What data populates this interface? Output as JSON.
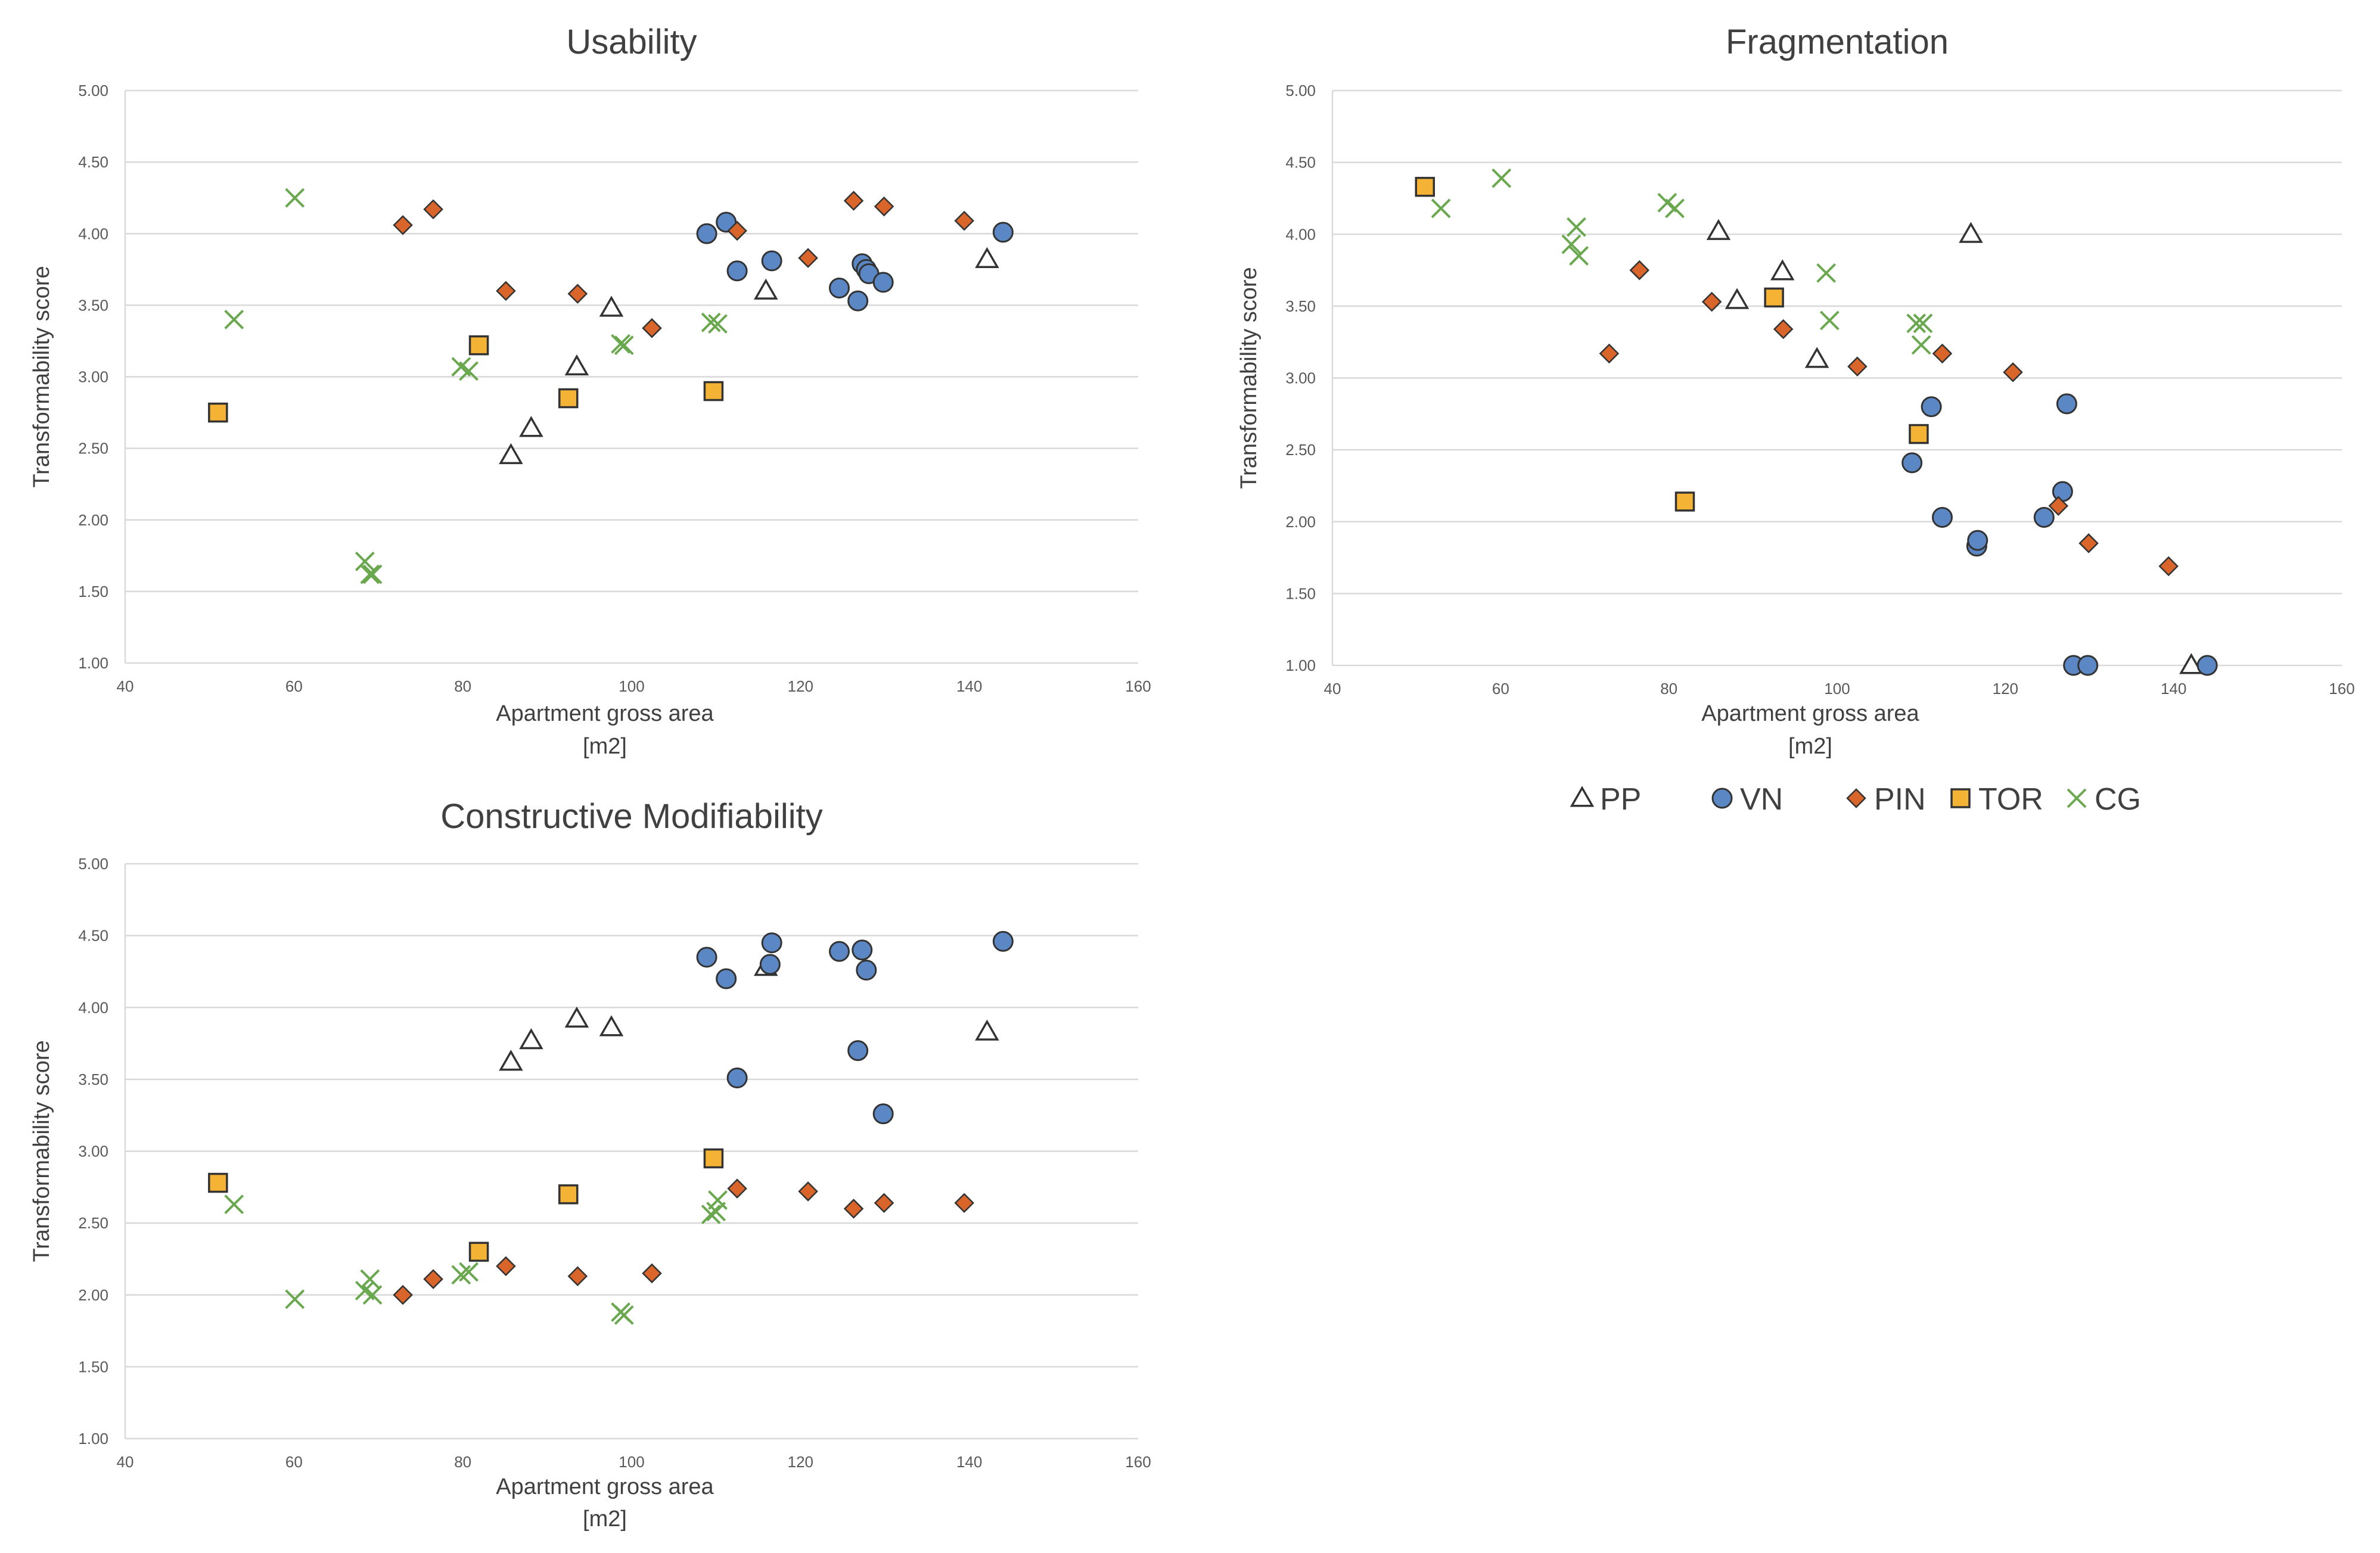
{
  "legend": {
    "placement": "below-right-chart",
    "entries": [
      {
        "key": "PP",
        "label": "PP",
        "marker": "triangle-open"
      },
      {
        "key": "VN",
        "label": "VN",
        "marker": "circle"
      },
      {
        "key": "PIN",
        "label": "PIN",
        "marker": "diamond"
      },
      {
        "key": "TOR",
        "label": "TOR",
        "marker": "square"
      },
      {
        "key": "CG",
        "label": "CG",
        "marker": "x"
      }
    ]
  },
  "colors": {
    "PP": "#ffffff",
    "VN": "#5b87c5",
    "PIN": "#d9652a",
    "TOR": "#f5b335",
    "CG": "#6aa84f",
    "stroke": "#333333",
    "grid": "#d9d9d9",
    "text": "#404040"
  },
  "chart_data": [
    {
      "id": "usability",
      "type": "scatter",
      "title": "Usability",
      "xlabel": "Apartment gross area",
      "xlabel_unit": "[m2]",
      "ylabel": "Transformability score",
      "xlim": [
        40,
        160
      ],
      "ylim": [
        1.0,
        5.0
      ],
      "xticks": [
        "40",
        "60",
        "80",
        "100",
        "120",
        "140",
        "160"
      ],
      "yticks": [
        "1.00",
        "1.50",
        "2.00",
        "2.50",
        "3.00",
        "3.50",
        "4.00",
        "4.50",
        "5.00"
      ],
      "grid": true,
      "series": [
        {
          "name": "PP",
          "points": [
            [
              85.7,
              2.45
            ],
            [
              88.1,
              2.64
            ],
            [
              93.5,
              3.07
            ],
            [
              97.6,
              3.48
            ],
            [
              115.9,
              3.6
            ],
            [
              142.1,
              3.82
            ]
          ]
        },
        {
          "name": "VN",
          "points": [
            [
              108.9,
              4.0
            ],
            [
              111.2,
              4.08
            ],
            [
              112.5,
              3.74
            ],
            [
              116.6,
              3.81
            ],
            [
              124.6,
              3.62
            ],
            [
              126.8,
              3.53
            ],
            [
              127.3,
              3.79
            ],
            [
              127.8,
              3.75
            ],
            [
              128.1,
              3.72
            ],
            [
              129.8,
              3.66
            ],
            [
              144.0,
              4.01
            ]
          ]
        },
        {
          "name": "PIN",
          "points": [
            [
              72.9,
              4.06
            ],
            [
              76.5,
              4.17
            ],
            [
              85.1,
              3.6
            ],
            [
              93.6,
              3.58
            ],
            [
              102.4,
              3.34
            ],
            [
              112.5,
              4.02
            ],
            [
              120.9,
              3.83
            ],
            [
              126.3,
              4.23
            ],
            [
              129.9,
              4.19
            ],
            [
              139.4,
              4.09
            ]
          ]
        },
        {
          "name": "TOR",
          "points": [
            [
              51.0,
              2.75
            ],
            [
              81.9,
              3.22
            ],
            [
              92.5,
              2.85
            ],
            [
              109.7,
              2.9
            ]
          ]
        },
        {
          "name": "CG",
          "points": [
            [
              52.9,
              3.4
            ],
            [
              60.1,
              4.25
            ],
            [
              68.4,
              1.71
            ],
            [
              69.0,
              1.62
            ],
            [
              69.3,
              1.62
            ],
            [
              79.8,
              3.07
            ],
            [
              80.7,
              3.04
            ],
            [
              98.7,
              3.23
            ],
            [
              99.1,
              3.22
            ],
            [
              109.4,
              3.38
            ],
            [
              110.2,
              3.37
            ]
          ]
        }
      ]
    },
    {
      "id": "fragmentation",
      "type": "scatter",
      "title": "Fragmentation",
      "xlabel": "Apartment gross area",
      "xlabel_unit": "[m2]",
      "ylabel": "Transformability score",
      "xlim": [
        40,
        160
      ],
      "ylim": [
        1.0,
        5.0
      ],
      "xticks": [
        "40",
        "60",
        "80",
        "100",
        "120",
        "140",
        "160"
      ],
      "yticks": [
        "1.00",
        "1.50",
        "2.00",
        "2.50",
        "3.00",
        "3.50",
        "4.00",
        "4.50",
        "5.00"
      ],
      "grid": true,
      "series": [
        {
          "name": "PP",
          "points": [
            [
              85.9,
              4.02
            ],
            [
              88.1,
              3.54
            ],
            [
              93.5,
              3.74
            ],
            [
              97.6,
              3.13
            ],
            [
              115.9,
              4.0
            ],
            [
              142.1,
              1.0
            ]
          ]
        },
        {
          "name": "VN",
          "points": [
            [
              108.9,
              2.41
            ],
            [
              111.2,
              2.8
            ],
            [
              112.5,
              2.03
            ],
            [
              116.6,
              1.83
            ],
            [
              116.7,
              1.87
            ],
            [
              124.6,
              2.03
            ],
            [
              126.8,
              2.21
            ],
            [
              127.3,
              2.82
            ],
            [
              128.1,
              1.0
            ],
            [
              129.8,
              1.0
            ],
            [
              144.0,
              1.0
            ]
          ]
        },
        {
          "name": "PIN",
          "points": [
            [
              72.9,
              3.17
            ],
            [
              76.5,
              3.75
            ],
            [
              85.1,
              3.53
            ],
            [
              93.6,
              3.34
            ],
            [
              102.4,
              3.08
            ],
            [
              112.5,
              3.17
            ],
            [
              120.9,
              3.04
            ],
            [
              126.3,
              2.11
            ],
            [
              129.9,
              1.85
            ],
            [
              139.4,
              1.69
            ]
          ]
        },
        {
          "name": "TOR",
          "points": [
            [
              51.0,
              4.33
            ],
            [
              81.9,
              2.14
            ],
            [
              92.5,
              3.56
            ],
            [
              109.7,
              2.61
            ]
          ]
        },
        {
          "name": "CG",
          "points": [
            [
              52.9,
              4.18
            ],
            [
              60.1,
              4.39
            ],
            [
              68.4,
              3.93
            ],
            [
              69.0,
              4.05
            ],
            [
              69.3,
              3.85
            ],
            [
              79.8,
              4.22
            ],
            [
              80.7,
              4.18
            ],
            [
              98.7,
              3.73
            ],
            [
              99.1,
              3.4
            ],
            [
              109.4,
              3.38
            ],
            [
              110.2,
              3.38
            ],
            [
              110.0,
              3.23
            ]
          ]
        }
      ]
    },
    {
      "id": "constructive-modifiability",
      "type": "scatter",
      "title": "Constructive Modifiability",
      "xlabel": "Apartment gross area",
      "xlabel_unit": "[m2]",
      "ylabel": "Transformability score",
      "xlim": [
        40,
        160
      ],
      "ylim": [
        1.0,
        5.0
      ],
      "xticks": [
        "40",
        "60",
        "80",
        "100",
        "120",
        "140",
        "160"
      ],
      "yticks": [
        "1.00",
        "1.50",
        "2.00",
        "2.50",
        "3.00",
        "3.50",
        "4.00",
        "4.50",
        "5.00"
      ],
      "grid": true,
      "series": [
        {
          "name": "PP",
          "points": [
            [
              85.7,
              3.62
            ],
            [
              88.1,
              3.77
            ],
            [
              93.5,
              3.92
            ],
            [
              97.6,
              3.86
            ],
            [
              115.9,
              4.28
            ],
            [
              142.1,
              3.83
            ]
          ]
        },
        {
          "name": "VN",
          "points": [
            [
              108.9,
              4.35
            ],
            [
              111.2,
              4.2
            ],
            [
              112.5,
              3.51
            ],
            [
              116.4,
              4.3
            ],
            [
              116.6,
              4.45
            ],
            [
              124.6,
              4.39
            ],
            [
              126.8,
              3.7
            ],
            [
              127.3,
              4.4
            ],
            [
              127.8,
              4.26
            ],
            [
              129.8,
              3.26
            ],
            [
              144.0,
              4.46
            ]
          ]
        },
        {
          "name": "PIN",
          "points": [
            [
              72.9,
              2.0
            ],
            [
              76.5,
              2.11
            ],
            [
              85.1,
              2.2
            ],
            [
              93.6,
              2.13
            ],
            [
              102.4,
              2.15
            ],
            [
              112.5,
              2.74
            ],
            [
              120.9,
              2.72
            ],
            [
              126.3,
              2.6
            ],
            [
              129.9,
              2.64
            ],
            [
              139.4,
              2.64
            ]
          ]
        },
        {
          "name": "TOR",
          "points": [
            [
              51.0,
              2.78
            ],
            [
              81.9,
              2.3
            ],
            [
              92.5,
              2.7
            ],
            [
              109.7,
              2.95
            ]
          ]
        },
        {
          "name": "CG",
          "points": [
            [
              52.9,
              2.63
            ],
            [
              60.1,
              1.97
            ],
            [
              68.4,
              2.03
            ],
            [
              69.0,
              2.11
            ],
            [
              69.3,
              2.0
            ],
            [
              79.8,
              2.14
            ],
            [
              80.7,
              2.16
            ],
            [
              98.7,
              1.88
            ],
            [
              99.1,
              1.86
            ],
            [
              109.4,
              2.56
            ],
            [
              110.2,
              2.66
            ],
            [
              110.0,
              2.58
            ]
          ]
        }
      ]
    }
  ]
}
